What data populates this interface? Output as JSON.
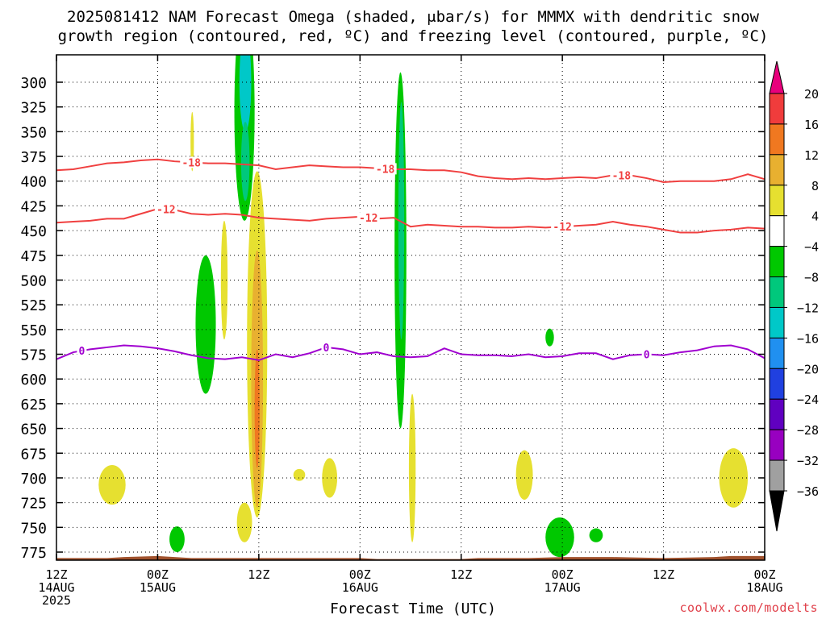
{
  "title_line1": "2025081412 NAM Forecast Omega (shaded, μbar/s) for MMMX with dendritic snow",
  "title_line2": "growth region (contoured, red, ºC) and freezing level (contoured, purple, ºC)",
  "credit": "coolwx.com/modelts",
  "chart_data": {
    "type": "heatmap",
    "title": "2025081412 NAM Forecast Omega (shaded, μbar/s) for MMMX with dendritic snow growth region (contoured, red, ºC) and freezing level (contoured, purple, ºC)",
    "xlabel": "Forecast Time (UTC)",
    "ylabel": "",
    "x_unit": "hours since 2025-08-14 12Z",
    "xlim": [
      0,
      84
    ],
    "ylim": [
      780,
      280
    ],
    "y_ticks": [
      300,
      325,
      350,
      375,
      400,
      425,
      450,
      475,
      500,
      525,
      550,
      575,
      600,
      625,
      650,
      675,
      700,
      725,
      750,
      775
    ],
    "x_ticks": [
      {
        "h": 0,
        "top": "12Z",
        "mid": "14AUG",
        "bot": "2025"
      },
      {
        "h": 12,
        "top": "00Z",
        "mid": "15AUG",
        "bot": ""
      },
      {
        "h": 24,
        "top": "12Z",
        "mid": "",
        "bot": ""
      },
      {
        "h": 36,
        "top": "00Z",
        "mid": "16AUG",
        "bot": ""
      },
      {
        "h": 48,
        "top": "12Z",
        "mid": "",
        "bot": ""
      },
      {
        "h": 60,
        "top": "00Z",
        "mid": "17AUG",
        "bot": ""
      },
      {
        "h": 72,
        "top": "12Z",
        "mid": "",
        "bot": ""
      },
      {
        "h": 84,
        "top": "00Z",
        "mid": "18AUG",
        "bot": ""
      }
    ],
    "grid": true,
    "colorbar": {
      "levels": [
        20,
        16,
        12,
        8,
        4,
        -4,
        -8,
        -12,
        -16,
        -20,
        -24,
        -28,
        -32,
        -36
      ],
      "colors": [
        "#e8007c",
        "#f03c3c",
        "#f07820",
        "#e8b030",
        "#e6e030",
        "#ffffff",
        "#00c800",
        "#00c87c",
        "#00c8c8",
        "#2090f0",
        "#2040e0",
        "#6000c0",
        "#9800c0",
        "#a0a0a0",
        "#000000"
      ]
    },
    "contours": [
      {
        "name": "-18",
        "color": "#f04040",
        "label_at_h": [
          16,
          39,
          67
        ],
        "points": [
          [
            0,
            389
          ],
          [
            2,
            388
          ],
          [
            4,
            385
          ],
          [
            6,
            382
          ],
          [
            8,
            381
          ],
          [
            10,
            379
          ],
          [
            12,
            378
          ],
          [
            14,
            380
          ],
          [
            16,
            381
          ],
          [
            18,
            382
          ],
          [
            20,
            382
          ],
          [
            22,
            383
          ],
          [
            24,
            384
          ],
          [
            26,
            388
          ],
          [
            28,
            386
          ],
          [
            30,
            384
          ],
          [
            32,
            385
          ],
          [
            34,
            386
          ],
          [
            36,
            386
          ],
          [
            38,
            387
          ],
          [
            40,
            388
          ],
          [
            42,
            388
          ],
          [
            44,
            389
          ],
          [
            46,
            389
          ],
          [
            48,
            391
          ],
          [
            50,
            395
          ],
          [
            52,
            397
          ],
          [
            54,
            398
          ],
          [
            56,
            397
          ],
          [
            58,
            398
          ],
          [
            60,
            397
          ],
          [
            62,
            396
          ],
          [
            64,
            397
          ],
          [
            66,
            394
          ],
          [
            68,
            394
          ],
          [
            70,
            397
          ],
          [
            72,
            401
          ],
          [
            74,
            400
          ],
          [
            76,
            400
          ],
          [
            78,
            400
          ],
          [
            80,
            398
          ],
          [
            82,
            393
          ],
          [
            84,
            398
          ]
        ]
      },
      {
        "name": "-12",
        "color": "#f04040",
        "label_at_h": [
          13,
          37,
          60
        ],
        "points": [
          [
            0,
            442
          ],
          [
            2,
            441
          ],
          [
            4,
            440
          ],
          [
            6,
            438
          ],
          [
            8,
            438
          ],
          [
            10,
            433
          ],
          [
            12,
            428
          ],
          [
            14,
            429
          ],
          [
            16,
            433
          ],
          [
            18,
            434
          ],
          [
            20,
            433
          ],
          [
            22,
            434
          ],
          [
            24,
            437
          ],
          [
            26,
            438
          ],
          [
            28,
            439
          ],
          [
            30,
            440
          ],
          [
            32,
            438
          ],
          [
            34,
            437
          ],
          [
            36,
            436
          ],
          [
            38,
            438
          ],
          [
            40,
            437
          ],
          [
            42,
            446
          ],
          [
            44,
            444
          ],
          [
            46,
            445
          ],
          [
            48,
            446
          ],
          [
            50,
            446
          ],
          [
            52,
            447
          ],
          [
            54,
            447
          ],
          [
            56,
            446
          ],
          [
            58,
            447
          ],
          [
            60,
            446
          ],
          [
            62,
            445
          ],
          [
            64,
            444
          ],
          [
            66,
            441
          ],
          [
            68,
            444
          ],
          [
            70,
            446
          ],
          [
            72,
            449
          ],
          [
            74,
            452
          ],
          [
            76,
            452
          ],
          [
            78,
            450
          ],
          [
            80,
            449
          ],
          [
            82,
            447
          ],
          [
            84,
            448
          ]
        ]
      },
      {
        "name": "0",
        "color": "#a000d0",
        "label_at_h": [
          3,
          32,
          70
        ],
        "points": [
          [
            0,
            580
          ],
          [
            2,
            573
          ],
          [
            4,
            570
          ],
          [
            6,
            568
          ],
          [
            8,
            566
          ],
          [
            10,
            567
          ],
          [
            12,
            569
          ],
          [
            14,
            572
          ],
          [
            16,
            576
          ],
          [
            18,
            579
          ],
          [
            20,
            580
          ],
          [
            22,
            578
          ],
          [
            24,
            581
          ],
          [
            26,
            575
          ],
          [
            28,
            578
          ],
          [
            30,
            574
          ],
          [
            32,
            568
          ],
          [
            34,
            570
          ],
          [
            36,
            575
          ],
          [
            38,
            573
          ],
          [
            40,
            577
          ],
          [
            42,
            578
          ],
          [
            44,
            577
          ],
          [
            46,
            569
          ],
          [
            48,
            575
          ],
          [
            50,
            576
          ],
          [
            52,
            576
          ],
          [
            54,
            577
          ],
          [
            56,
            575
          ],
          [
            58,
            578
          ],
          [
            60,
            577
          ],
          [
            62,
            574
          ],
          [
            64,
            574
          ],
          [
            66,
            580
          ],
          [
            68,
            576
          ],
          [
            70,
            575
          ],
          [
            72,
            576
          ],
          [
            74,
            573
          ],
          [
            76,
            571
          ],
          [
            78,
            567
          ],
          [
            80,
            566
          ],
          [
            82,
            570
          ],
          [
            84,
            579
          ]
        ]
      }
    ],
    "omega_regions": [
      {
        "color": "#00c800",
        "value": -8,
        "cx": 22.3,
        "cy": 330,
        "rx": 1.2,
        "ry": 110
      },
      {
        "color": "#00c8c8",
        "value": -12,
        "cx": 22.4,
        "cy": 300,
        "rx": 0.7,
        "ry": 50
      },
      {
        "color": "#00c87c",
        "value": -8,
        "cx": 22.4,
        "cy": 380,
        "rx": 0.5,
        "ry": 40
      },
      {
        "color": "#00c800",
        "value": -8,
        "cx": 40.8,
        "cy": 470,
        "rx": 0.7,
        "ry": 180
      },
      {
        "color": "#00c87c",
        "value": -8,
        "cx": 40.9,
        "cy": 440,
        "rx": 0.35,
        "ry": 120
      },
      {
        "color": "#00c800",
        "value": -8,
        "cx": 17.7,
        "cy": 545,
        "rx": 1.2,
        "ry": 70
      },
      {
        "color": "#00c800",
        "value": -8,
        "cx": 58.5,
        "cy": 558,
        "rx": 0.5,
        "ry": 9
      },
      {
        "color": "#00c800",
        "value": -8,
        "cx": 59.7,
        "cy": 760,
        "rx": 1.7,
        "ry": 20
      },
      {
        "color": "#00c800",
        "value": -8,
        "cx": 64.0,
        "cy": 758,
        "rx": 0.8,
        "ry": 7
      },
      {
        "color": "#00c800",
        "value": -8,
        "cx": 14.3,
        "cy": 762,
        "rx": 0.9,
        "ry": 13
      },
      {
        "color": "#e6e030",
        "value": 4,
        "cx": 16.1,
        "cy": 360,
        "rx": 0.2,
        "ry": 30
      },
      {
        "color": "#e6e030",
        "value": 4,
        "cx": 19.9,
        "cy": 500,
        "rx": 0.4,
        "ry": 60
      },
      {
        "color": "#e6e030",
        "value": 4,
        "cx": 23.8,
        "cy": 565,
        "rx": 1.2,
        "ry": 175
      },
      {
        "color": "#e8b030",
        "value": 8,
        "cx": 23.8,
        "cy": 600,
        "rx": 0.7,
        "ry": 130
      },
      {
        "color": "#f07820",
        "value": 12,
        "cx": 23.8,
        "cy": 630,
        "rx": 0.3,
        "ry": 60
      },
      {
        "color": "#e6e030",
        "value": 4,
        "cx": 22.3,
        "cy": 745,
        "rx": 0.9,
        "ry": 20
      },
      {
        "color": "#e6e030",
        "value": 4,
        "cx": 42.2,
        "cy": 690,
        "rx": 0.4,
        "ry": 75
      },
      {
        "color": "#e6e030",
        "value": 4,
        "cx": 6.6,
        "cy": 707,
        "rx": 1.6,
        "ry": 20
      },
      {
        "color": "#e6e030",
        "value": 4,
        "cx": 28.8,
        "cy": 697,
        "rx": 0.7,
        "ry": 6
      },
      {
        "color": "#e6e030",
        "value": 4,
        "cx": 32.4,
        "cy": 700,
        "rx": 0.9,
        "ry": 20
      },
      {
        "color": "#e6e030",
        "value": 4,
        "cx": 55.5,
        "cy": 697,
        "rx": 1.0,
        "ry": 25
      },
      {
        "color": "#e6e030",
        "value": 4,
        "cx": 80.3,
        "cy": 700,
        "rx": 1.7,
        "ry": 30
      }
    ],
    "terrain": {
      "color": "#a0522d",
      "points": [
        [
          0,
          781
        ],
        [
          6,
          781
        ],
        [
          8,
          780
        ],
        [
          12,
          779
        ],
        [
          14,
          780
        ],
        [
          16,
          781
        ],
        [
          36,
          781
        ],
        [
          38,
          782
        ],
        [
          48,
          782
        ],
        [
          50,
          781
        ],
        [
          56,
          781
        ],
        [
          60,
          780
        ],
        [
          66,
          780
        ],
        [
          72,
          781
        ],
        [
          78,
          780
        ],
        [
          80,
          779
        ],
        [
          84,
          779
        ]
      ]
    }
  }
}
